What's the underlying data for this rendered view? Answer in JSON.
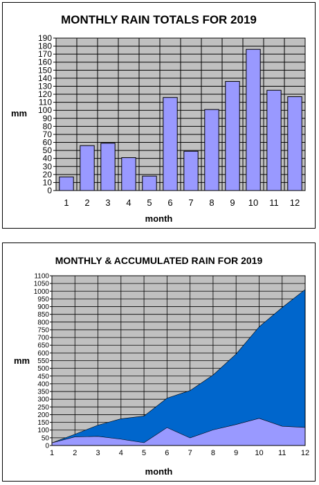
{
  "chart_data": [
    {
      "type": "bar",
      "title": "MONTHLY RAIN TOTALS FOR 2019",
      "xlabel": "month",
      "ylabel": "mm",
      "categories": [
        "1",
        "2",
        "3",
        "4",
        "5",
        "6",
        "7",
        "8",
        "9",
        "10",
        "11",
        "12"
      ],
      "values": [
        17,
        56,
        59,
        41,
        18,
        116,
        49,
        101,
        136,
        176,
        125,
        117
      ],
      "ylim": [
        0,
        190
      ],
      "ytick_step": 10,
      "grid": true,
      "colors": {
        "bar": "#9999ff",
        "plot_bg": "#c0c0c0"
      }
    },
    {
      "type": "area",
      "title": "MONTHLY & ACCUMULATED RAIN FOR 2019",
      "xlabel": "month",
      "ylabel": "mm",
      "categories": [
        "1",
        "2",
        "3",
        "4",
        "5",
        "6",
        "7",
        "8",
        "9",
        "10",
        "11",
        "12"
      ],
      "series": [
        {
          "values": [
            17,
            73,
            132,
            173,
            191,
            307,
            356,
            457,
            593,
            769,
            894,
            1011
          ]
        },
        {
          "values": [
            17,
            56,
            59,
            41,
            18,
            116,
            49,
            101,
            136,
            176,
            125,
            117
          ]
        }
      ],
      "ylim": [
        0,
        1100
      ],
      "ytick_step": 50,
      "grid": true,
      "colors": {
        "accumulated": "#0066cc",
        "monthly": "#9999ff",
        "plot_bg": "#c0c0c0"
      }
    }
  ]
}
